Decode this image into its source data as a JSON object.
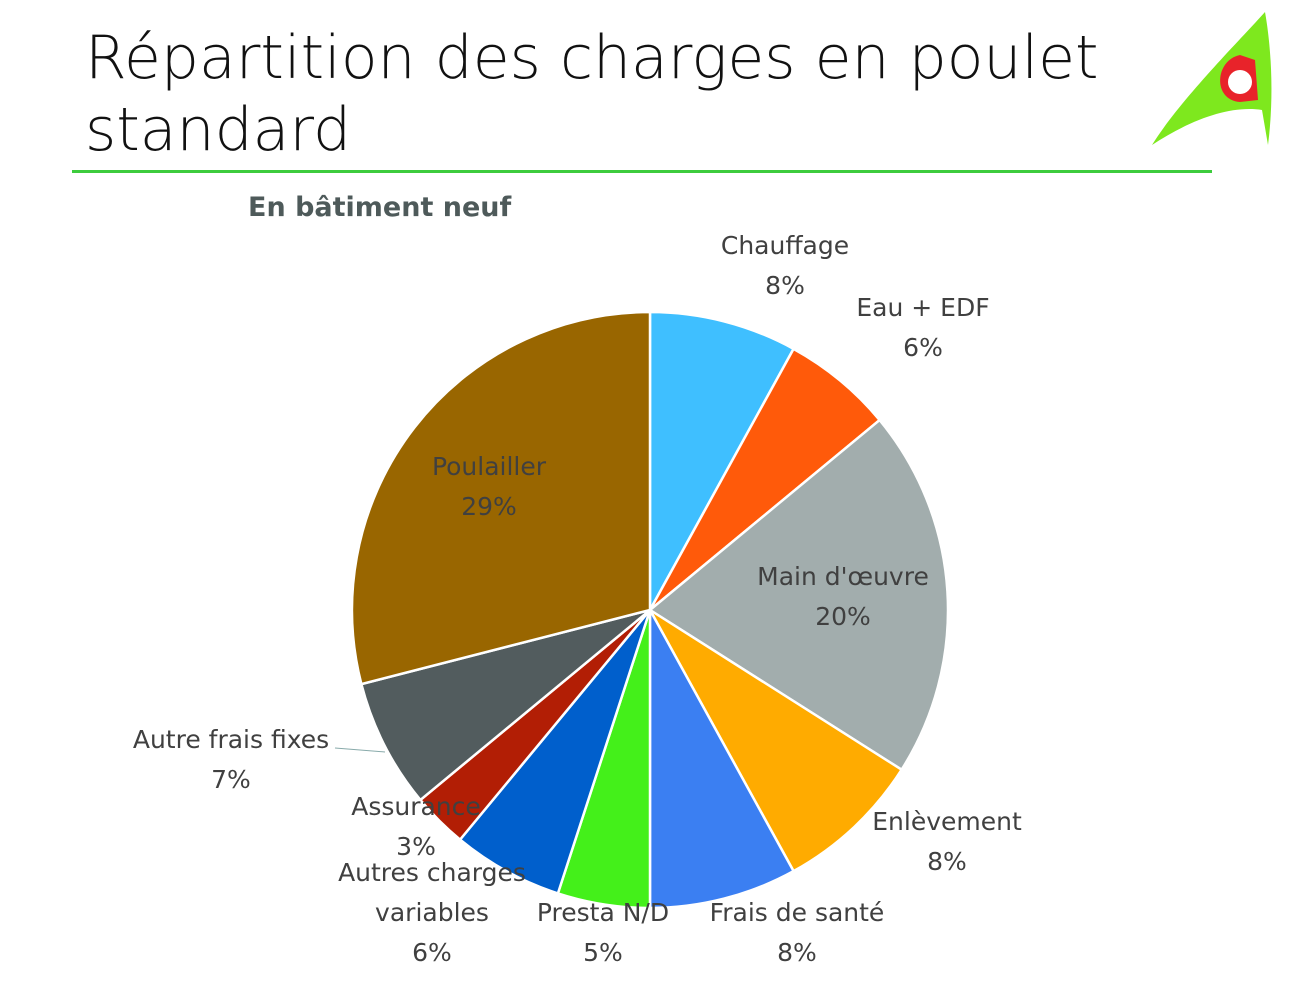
{
  "chart_data": {
    "type": "pie",
    "title": "Répartition des charges en poulet standard",
    "subtitle": "En bâtiment neuf",
    "categories": [
      "Chauffage",
      "Eau + EDF",
      "Main d'œuvre",
      "Enlèvement",
      "Frais de santé",
      "Presta N/D",
      "Autres  charges variables",
      "Assurance",
      "Autre frais fixes",
      "Poulailler"
    ],
    "values": [
      8,
      6,
      20,
      8,
      8,
      5,
      6,
      3,
      7,
      29
    ],
    "value_labels": [
      "8%",
      "6%",
      "20%",
      "8%",
      "8%",
      "5%",
      "6%",
      "3%",
      "7%",
      "29%"
    ],
    "colors": [
      "#3fbfff",
      "#ff5a0a",
      "#a2adad",
      "#ffab00",
      "#3b7ff2",
      "#44f01a",
      "#005fcc",
      "#b21e05",
      "#525c5e",
      "#996600"
    ]
  }
}
